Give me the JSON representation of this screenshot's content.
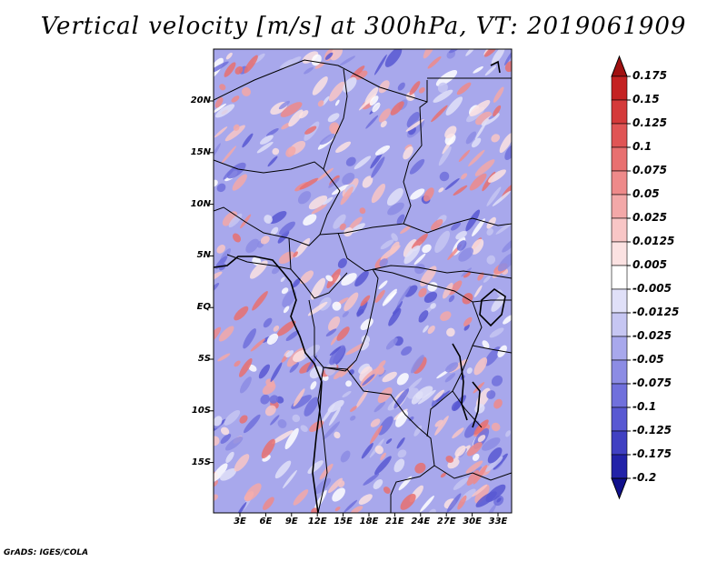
{
  "title": "Vertical velocity [m/s] at 300hPa, VT: 2019061909",
  "credit": "GrADS: IGES/COLA",
  "lat_labels": [
    "20N",
    "15N",
    "10N",
    "5N",
    "EQ",
    "5S",
    "10S",
    "15S"
  ],
  "lon_labels": [
    "3E",
    "6E",
    "9E",
    "12E",
    "15E",
    "18E",
    "21E",
    "24E",
    "27E",
    "30E",
    "33E"
  ],
  "colorbar": {
    "labels": [
      "0.175",
      "0.15",
      "0.125",
      "0.1",
      "0.075",
      "0.05",
      "0.025",
      "0.0125",
      "0.005",
      "-0.005",
      "-0.0125",
      "-0.025",
      "-0.05",
      "-0.075",
      "-0.1",
      "-0.125",
      "-0.175",
      "-0.2"
    ],
    "colors": [
      "#a01010",
      "#c42222",
      "#d43a3a",
      "#e05555",
      "#e87070",
      "#ee8a8a",
      "#f3a8a8",
      "#f8c6c6",
      "#fbe2e2",
      "#ffffff",
      "#e0e0f8",
      "#c6c6f2",
      "#a8a8ec",
      "#8c8ce4",
      "#7070dc",
      "#5858d2",
      "#4040c2",
      "#2222a8",
      "#10108c"
    ]
  }
}
